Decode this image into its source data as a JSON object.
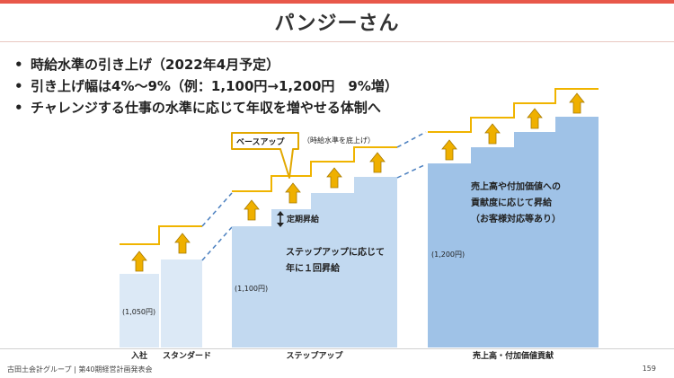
{
  "title": "パンジーさん",
  "bullets": [
    "時給水準の引き上げ（2022年4月予定）",
    "引き上げ幅は4%～9%（例：1,100円→1,200円　9%増）",
    "チャレンジする仕事の水準に応じて年収を増やせる体制へ"
  ],
  "diagram": {
    "callout_label": "ベースアップ",
    "callout_note": "（時給水準を底上げ）",
    "periodic_label": "定期昇給",
    "step_desc_line1": "ステップアップに応じて",
    "step_desc_line2": "年に１回昇給",
    "sales_desc_line1": "売上高や付加価値への",
    "sales_desc_line2": "貢献度に応じて昇給",
    "sales_desc_line3": "（お客様対応等あり）",
    "wage_entry": "(1,050円)",
    "wage_step": "(1,100円)",
    "wage_sales": "(1,200円)",
    "categories": [
      "入社",
      "スタンダード",
      "ステップアップ",
      "売上高・付加価値貢献"
    ]
  },
  "footer": {
    "company": "古田土会計グループ",
    "meeting": "第40期経営計画発表会",
    "page": "159"
  },
  "colors": {
    "accent": "#e8584a",
    "gold": "#f0b400",
    "light_blue": "#dce9f6",
    "mid_blue": "#bcd6ef",
    "dark_blue": "#9fc2e7"
  }
}
